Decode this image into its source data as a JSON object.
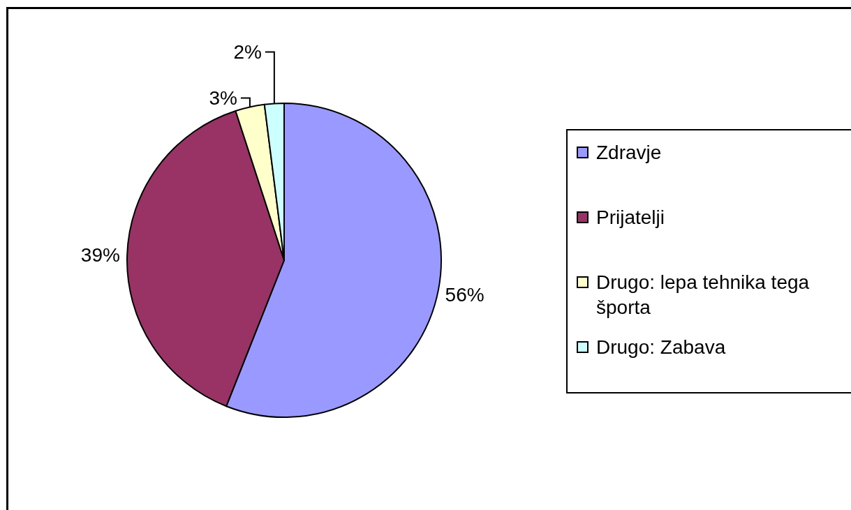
{
  "chart_data": {
    "type": "pie",
    "categories": [
      "Zdravje",
      "Prijatelji",
      "Drugo: lepa tehnika tega športa",
      "Drugo: Zabava"
    ],
    "values": [
      56,
      39,
      3,
      2
    ],
    "colors": [
      "#9999ff",
      "#993366",
      "#ffffcc",
      "#ccffff"
    ],
    "value_labels": [
      "56%",
      "39%",
      "3%",
      "2%"
    ],
    "legend": "right"
  }
}
